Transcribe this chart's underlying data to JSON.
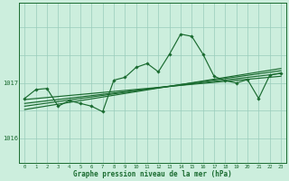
{
  "title": "Graphe pression niveau de la mer (hPa)",
  "bg_color": "#cceedd",
  "grid_color": "#99ccbb",
  "line_color": "#1a6b30",
  "hours": [
    0,
    1,
    2,
    3,
    4,
    5,
    6,
    7,
    8,
    9,
    10,
    11,
    12,
    13,
    14,
    15,
    16,
    17,
    18,
    19,
    20,
    21,
    22,
    23
  ],
  "pressure": [
    1016.72,
    1016.88,
    1016.9,
    1016.58,
    1016.68,
    1016.63,
    1016.58,
    1016.48,
    1017.05,
    1017.1,
    1017.28,
    1017.35,
    1017.2,
    1017.52,
    1017.88,
    1017.84,
    1017.52,
    1017.12,
    1017.04,
    1017.0,
    1017.06,
    1016.72,
    1017.14,
    1017.18
  ],
  "trend_lines": [
    [
      1016.58,
      1017.22
    ],
    [
      1016.52,
      1017.26
    ],
    [
      1016.63,
      1017.17
    ],
    [
      1016.7,
      1017.12
    ]
  ],
  "ylim": [
    1015.55,
    1018.45
  ],
  "yticks": [
    1016.0,
    1017.0
  ],
  "xlim": [
    -0.5,
    23.5
  ]
}
